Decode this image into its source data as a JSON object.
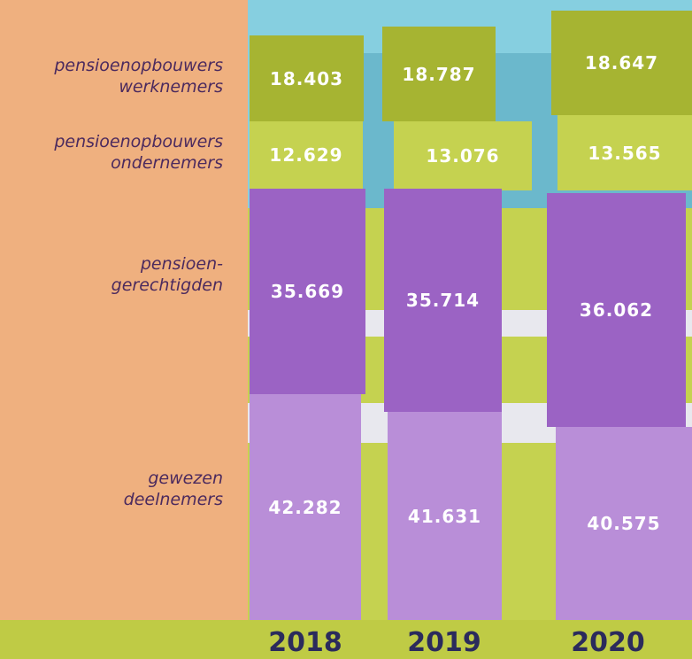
{
  "rows": [
    {
      "label": [
        "pensioenopbouwers",
        "werknemers"
      ],
      "values": [
        "18.403",
        "18.787",
        "18.647"
      ]
    },
    {
      "label": [
        "pensioenopbouwers",
        "ondernemers"
      ],
      "values": [
        "12.629",
        "13.076",
        "13.565"
      ]
    },
    {
      "label": [
        "pensioen-",
        "gerechtigden"
      ],
      "values": [
        "35.669",
        "35.714",
        "36.062"
      ]
    },
    {
      "label": [
        "gewezen",
        "deelnemers"
      ],
      "values": [
        "42.282",
        "41.631",
        "40.575"
      ]
    }
  ],
  "years": [
    "2018",
    "2019",
    "2020"
  ]
}
